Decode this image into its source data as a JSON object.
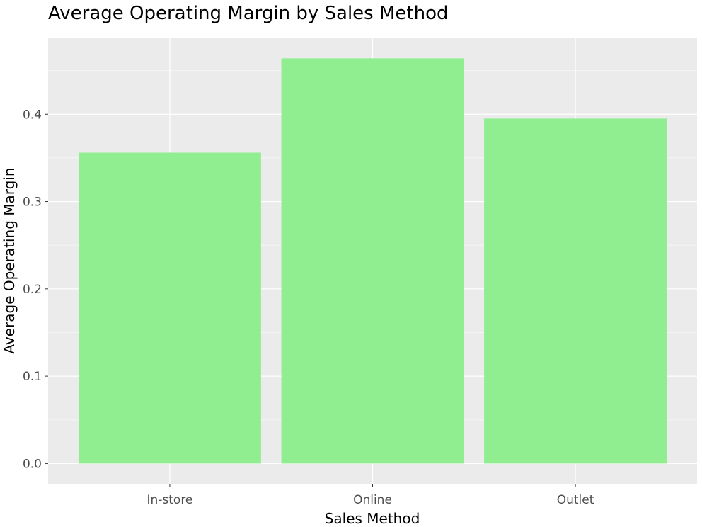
{
  "chart_data": {
    "type": "bar",
    "title": "Average Operating Margin by Sales Method",
    "xlabel": "Sales Method",
    "ylabel": "Average Operating Margin",
    "categories": [
      "In-store",
      "Online",
      "Outlet"
    ],
    "values": [
      0.356,
      0.464,
      0.395
    ],
    "ylim": [
      -0.0232,
      0.487
    ],
    "yticks": [
      0.0,
      0.1,
      0.2,
      0.3,
      0.4
    ],
    "ytick_labels": [
      "0.0",
      "0.1",
      "0.2",
      "0.3",
      "0.4"
    ],
    "grid": true,
    "legend": "none",
    "colors": {
      "bar": "#90ee90",
      "panel_background": "#ebebeb",
      "grid_major": "#ffffff",
      "grid_minor": "#f5f5f5",
      "tick_text": "#4d4d4d",
      "text": "#000000"
    }
  }
}
